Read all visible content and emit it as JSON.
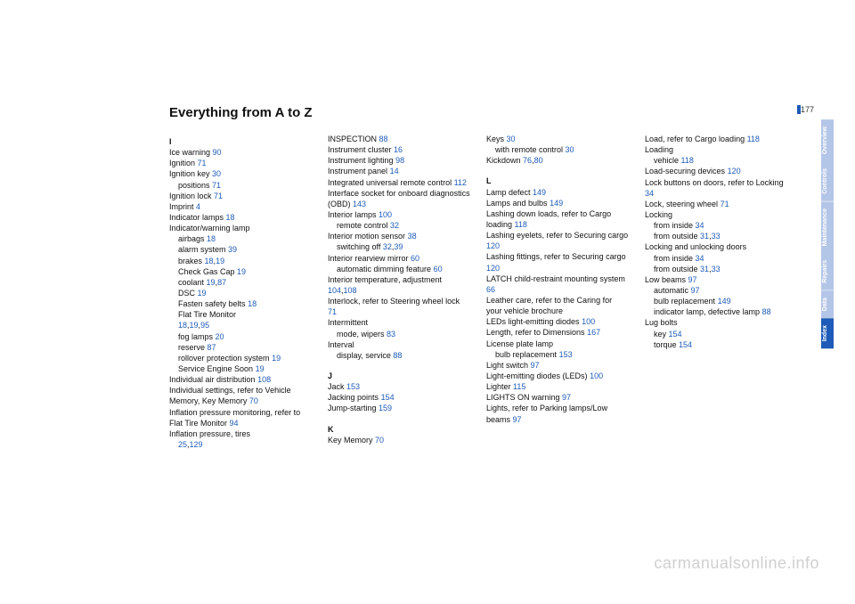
{
  "page_number": "177",
  "title": "Everything from A to Z",
  "watermark": "carmanualsonline.info",
  "link_color": "#1e5bb8",
  "tabs": [
    {
      "label": "Overview",
      "bg": "#b4c6e7"
    },
    {
      "label": "Controls",
      "bg": "#b4c6e7"
    },
    {
      "label": "Maintenance",
      "bg": "#b4c6e7"
    },
    {
      "label": "Repairs",
      "bg": "#b4c6e7"
    },
    {
      "label": "Data",
      "bg": "#b4c6e7"
    },
    {
      "label": "Index",
      "bg": "#1e5bb8"
    }
  ],
  "columns": [
    [
      {
        "t": "letter",
        "text": "I"
      },
      {
        "t": "e",
        "parts": [
          {
            "s": "Ice warning"
          },
          {
            "p": "90"
          }
        ]
      },
      {
        "t": "e",
        "parts": [
          {
            "s": "Ignition"
          },
          {
            "p": "71"
          }
        ]
      },
      {
        "t": "e",
        "parts": [
          {
            "s": "Ignition key"
          },
          {
            "p": "30"
          }
        ]
      },
      {
        "t": "s",
        "parts": [
          {
            "s": "positions"
          },
          {
            "p": "71"
          }
        ]
      },
      {
        "t": "e",
        "parts": [
          {
            "s": "Ignition lock"
          },
          {
            "p": "71"
          }
        ]
      },
      {
        "t": "e",
        "parts": [
          {
            "s": "Imprint"
          },
          {
            "p": "4"
          }
        ]
      },
      {
        "t": "e",
        "parts": [
          {
            "s": "Indicator lamps"
          },
          {
            "p": "18"
          }
        ]
      },
      {
        "t": "e",
        "parts": [
          {
            "s": "Indicator/warning lamp"
          }
        ]
      },
      {
        "t": "s",
        "parts": [
          {
            "s": "airbags"
          },
          {
            "p": "18"
          }
        ]
      },
      {
        "t": "s",
        "parts": [
          {
            "s": "alarm system"
          },
          {
            "p": "39"
          }
        ]
      },
      {
        "t": "s",
        "parts": [
          {
            "s": "brakes"
          },
          {
            "p": "18"
          },
          {
            "s": ","
          },
          {
            "p": "19"
          }
        ]
      },
      {
        "t": "s",
        "parts": [
          {
            "s": "Check Gas Cap"
          },
          {
            "p": "19"
          }
        ]
      },
      {
        "t": "s",
        "parts": [
          {
            "s": "coolant"
          },
          {
            "p": "19"
          },
          {
            "s": ","
          },
          {
            "p": "87"
          }
        ]
      },
      {
        "t": "s",
        "parts": [
          {
            "s": "DSC"
          },
          {
            "p": "19"
          }
        ]
      },
      {
        "t": "s",
        "parts": [
          {
            "s": "Fasten safety belts"
          },
          {
            "p": "18"
          }
        ]
      },
      {
        "t": "s",
        "parts": [
          {
            "s": "Flat Tire Monitor"
          }
        ]
      },
      {
        "t": "s",
        "parts": [
          {
            "p": "18"
          },
          {
            "s": ","
          },
          {
            "p": "19"
          },
          {
            "s": ","
          },
          {
            "p": "95"
          }
        ]
      },
      {
        "t": "s",
        "parts": [
          {
            "s": "fog lamps"
          },
          {
            "p": "20"
          }
        ]
      },
      {
        "t": "s",
        "parts": [
          {
            "s": "reserve"
          },
          {
            "p": "87"
          }
        ]
      },
      {
        "t": "s",
        "parts": [
          {
            "s": "rollover protection system"
          },
          {
            "p": "19"
          }
        ]
      },
      {
        "t": "s",
        "parts": [
          {
            "s": "Service Engine Soon"
          },
          {
            "p": "19"
          }
        ]
      },
      {
        "t": "e",
        "parts": [
          {
            "s": "Individual air distribution"
          },
          {
            "p": "108"
          }
        ]
      },
      {
        "t": "e",
        "parts": [
          {
            "s": "Individual settings, refer to Vehicle Memory, Key Memory"
          },
          {
            "p": "70"
          }
        ]
      },
      {
        "t": "e",
        "parts": [
          {
            "s": "Inflation pressure monitoring, refer to Flat Tire Monitor"
          },
          {
            "p": "94"
          }
        ]
      },
      {
        "t": "e",
        "parts": [
          {
            "s": "Inflation pressure, tires"
          }
        ]
      },
      {
        "t": "s",
        "parts": [
          {
            "p": "25"
          },
          {
            "s": ","
          },
          {
            "p": "129"
          }
        ]
      }
    ],
    [
      {
        "t": "e",
        "parts": [
          {
            "s": "INSPECTION"
          },
          {
            "p": "88"
          }
        ]
      },
      {
        "t": "e",
        "parts": [
          {
            "s": "Instrument cluster"
          },
          {
            "p": "16"
          }
        ]
      },
      {
        "t": "e",
        "parts": [
          {
            "s": "Instrument lighting"
          },
          {
            "p": "98"
          }
        ]
      },
      {
        "t": "e",
        "parts": [
          {
            "s": "Instrument panel"
          },
          {
            "p": "14"
          }
        ]
      },
      {
        "t": "e",
        "parts": [
          {
            "s": "Integrated universal remote control"
          },
          {
            "p": "112"
          }
        ]
      },
      {
        "t": "e",
        "parts": [
          {
            "s": "Interface socket for onboard diagnostics (OBD)"
          },
          {
            "p": "143"
          }
        ]
      },
      {
        "t": "e",
        "parts": [
          {
            "s": "Interior lamps"
          },
          {
            "p": "100"
          }
        ]
      },
      {
        "t": "s",
        "parts": [
          {
            "s": "remote control"
          },
          {
            "p": "32"
          }
        ]
      },
      {
        "t": "e",
        "parts": [
          {
            "s": "Interior motion sensor"
          },
          {
            "p": "38"
          }
        ]
      },
      {
        "t": "s",
        "parts": [
          {
            "s": "switching off"
          },
          {
            "p": "32"
          },
          {
            "s": ","
          },
          {
            "p": "39"
          }
        ]
      },
      {
        "t": "e",
        "parts": [
          {
            "s": "Interior rearview mirror"
          },
          {
            "p": "60"
          }
        ]
      },
      {
        "t": "s",
        "parts": [
          {
            "s": "automatic dimming feature"
          },
          {
            "p": "60"
          }
        ]
      },
      {
        "t": "e",
        "parts": [
          {
            "s": "Interior temperature, adjustment"
          },
          {
            "p": "104"
          },
          {
            "s": ","
          },
          {
            "p": "108"
          }
        ]
      },
      {
        "t": "e",
        "parts": [
          {
            "s": "Interlock, refer to Steering wheel lock"
          },
          {
            "p": "71"
          }
        ]
      },
      {
        "t": "e",
        "parts": [
          {
            "s": "Intermittent"
          }
        ]
      },
      {
        "t": "s",
        "parts": [
          {
            "s": "mode, wipers"
          },
          {
            "p": "83"
          }
        ]
      },
      {
        "t": "e",
        "parts": [
          {
            "s": "Interval"
          }
        ]
      },
      {
        "t": "s",
        "parts": [
          {
            "s": "display, service"
          },
          {
            "p": "88"
          }
        ]
      },
      {
        "t": "blank"
      },
      {
        "t": "letter",
        "text": "J"
      },
      {
        "t": "e",
        "parts": [
          {
            "s": "Jack"
          },
          {
            "p": "153"
          }
        ]
      },
      {
        "t": "e",
        "parts": [
          {
            "s": "Jacking points"
          },
          {
            "p": "154"
          }
        ]
      },
      {
        "t": "e",
        "parts": [
          {
            "s": "Jump-starting"
          },
          {
            "p": "159"
          }
        ]
      },
      {
        "t": "blank"
      },
      {
        "t": "letter",
        "text": "K"
      },
      {
        "t": "e",
        "parts": [
          {
            "s": "Key Memory"
          },
          {
            "p": "70"
          }
        ]
      }
    ],
    [
      {
        "t": "e",
        "parts": [
          {
            "s": "Keys"
          },
          {
            "p": "30"
          }
        ]
      },
      {
        "t": "s",
        "parts": [
          {
            "s": "with remote control"
          },
          {
            "p": "30"
          }
        ]
      },
      {
        "t": "e",
        "parts": [
          {
            "s": "Kickdown"
          },
          {
            "p": "76"
          },
          {
            "s": ","
          },
          {
            "p": "80"
          }
        ]
      },
      {
        "t": "blank"
      },
      {
        "t": "letter",
        "text": "L"
      },
      {
        "t": "e",
        "parts": [
          {
            "s": "Lamp defect"
          },
          {
            "p": "149"
          }
        ]
      },
      {
        "t": "e",
        "parts": [
          {
            "s": "Lamps and bulbs"
          },
          {
            "p": "149"
          }
        ]
      },
      {
        "t": "e",
        "parts": [
          {
            "s": "Lashing down loads, refer to Cargo loading"
          },
          {
            "p": "118"
          }
        ]
      },
      {
        "t": "e",
        "parts": [
          {
            "s": "Lashing eyelets, refer to Securing cargo"
          },
          {
            "p": "120"
          }
        ]
      },
      {
        "t": "e",
        "parts": [
          {
            "s": "Lashing fittings, refer to Securing cargo"
          },
          {
            "p": "120"
          }
        ]
      },
      {
        "t": "e",
        "parts": [
          {
            "s": "LATCH child-restraint mounting system"
          },
          {
            "p": "66"
          }
        ]
      },
      {
        "t": "e",
        "parts": [
          {
            "s": "Leather care, refer to the Caring for your vehicle brochure"
          }
        ]
      },
      {
        "t": "e",
        "parts": [
          {
            "s": "LEDs light-emitting diodes"
          },
          {
            "p": "100"
          }
        ]
      },
      {
        "t": "e",
        "parts": [
          {
            "s": "Length, refer to Dimensions"
          },
          {
            "p": "167"
          }
        ]
      },
      {
        "t": "e",
        "parts": [
          {
            "s": "License plate lamp"
          }
        ]
      },
      {
        "t": "s",
        "parts": [
          {
            "s": "bulb replacement"
          },
          {
            "p": "153"
          }
        ]
      },
      {
        "t": "e",
        "parts": [
          {
            "s": "Light switch"
          },
          {
            "p": "97"
          }
        ]
      },
      {
        "t": "e",
        "parts": [
          {
            "s": "Light-emitting diodes (LEDs)"
          },
          {
            "p": "100"
          }
        ]
      },
      {
        "t": "e",
        "parts": [
          {
            "s": "Lighter"
          },
          {
            "p": "115"
          }
        ]
      },
      {
        "t": "e",
        "parts": [
          {
            "s": "LIGHTS ON warning"
          },
          {
            "p": "97"
          }
        ]
      },
      {
        "t": "e",
        "parts": [
          {
            "s": "Lights, refer to Parking lamps/Low beams"
          },
          {
            "p": "97"
          }
        ]
      }
    ],
    [
      {
        "t": "e",
        "parts": [
          {
            "s": "Load, refer to Cargo loading"
          },
          {
            "p": "118"
          }
        ]
      },
      {
        "t": "e",
        "parts": [
          {
            "s": "Loading"
          }
        ]
      },
      {
        "t": "s",
        "parts": [
          {
            "s": "vehicle"
          },
          {
            "p": "118"
          }
        ]
      },
      {
        "t": "e",
        "parts": [
          {
            "s": "Load-securing devices"
          },
          {
            "p": "120"
          }
        ]
      },
      {
        "t": "e",
        "parts": [
          {
            "s": "Lock buttons on doors, refer to Locking"
          },
          {
            "p": "34"
          }
        ]
      },
      {
        "t": "e",
        "parts": [
          {
            "s": "Lock, steering wheel"
          },
          {
            "p": "71"
          }
        ]
      },
      {
        "t": "e",
        "parts": [
          {
            "s": "Locking"
          }
        ]
      },
      {
        "t": "s",
        "parts": [
          {
            "s": "from inside"
          },
          {
            "p": "34"
          }
        ]
      },
      {
        "t": "s",
        "parts": [
          {
            "s": "from outside"
          },
          {
            "p": "31"
          },
          {
            "s": ","
          },
          {
            "p": "33"
          }
        ]
      },
      {
        "t": "e",
        "parts": [
          {
            "s": "Locking and unlocking doors"
          }
        ]
      },
      {
        "t": "s",
        "parts": [
          {
            "s": "from inside"
          },
          {
            "p": "34"
          }
        ]
      },
      {
        "t": "s",
        "parts": [
          {
            "s": "from outside"
          },
          {
            "p": "31"
          },
          {
            "s": ","
          },
          {
            "p": "33"
          }
        ]
      },
      {
        "t": "e",
        "parts": [
          {
            "s": "Low beams"
          },
          {
            "p": "97"
          }
        ]
      },
      {
        "t": "s",
        "parts": [
          {
            "s": "automatic"
          },
          {
            "p": "97"
          }
        ]
      },
      {
        "t": "s",
        "parts": [
          {
            "s": "bulb replacement"
          },
          {
            "p": "149"
          }
        ]
      },
      {
        "t": "s",
        "parts": [
          {
            "s": "indicator lamp, defective lamp"
          },
          {
            "p": "88"
          }
        ]
      },
      {
        "t": "e",
        "parts": [
          {
            "s": "Lug bolts"
          }
        ]
      },
      {
        "t": "s",
        "parts": [
          {
            "s": "key"
          },
          {
            "p": "154"
          }
        ]
      },
      {
        "t": "s",
        "parts": [
          {
            "s": "torque"
          },
          {
            "p": "154"
          }
        ]
      }
    ]
  ]
}
